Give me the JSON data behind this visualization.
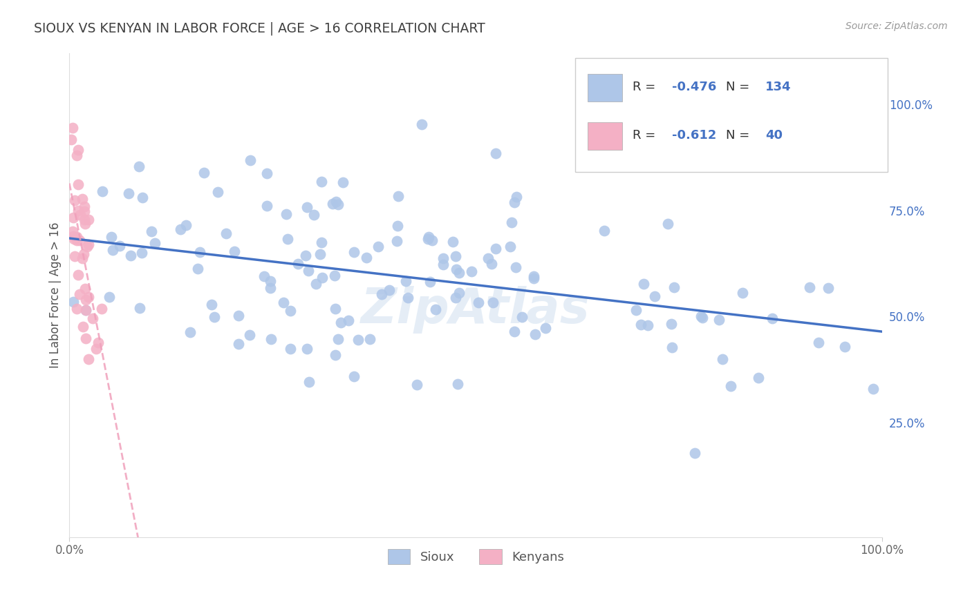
{
  "title": "SIOUX VS KENYAN IN LABOR FORCE | AGE > 16 CORRELATION CHART",
  "source_text": "Source: ZipAtlas.com",
  "ylabel": "In Labor Force | Age > 16",
  "xlim": [
    0.0,
    1.0
  ],
  "ylim": [
    -0.02,
    1.12
  ],
  "yticks": [
    0.25,
    0.5,
    0.75,
    1.0
  ],
  "ytick_labels": [
    "25.0%",
    "50.0%",
    "75.0%",
    "100.0%"
  ],
  "xticks": [
    0.0,
    1.0
  ],
  "xtick_labels": [
    "0.0%",
    "100.0%"
  ],
  "sioux_color": "#aec6e8",
  "kenyan_color": "#f4b0c5",
  "sioux_line_color": "#4472c4",
  "kenyan_line_color": "#f0a0bb",
  "sioux_R": -0.476,
  "sioux_N": 134,
  "kenyan_R": -0.612,
  "kenyan_N": 40,
  "watermark": "ZipAtlas",
  "background_color": "#ffffff",
  "grid_color": "#e5e5e5",
  "title_color": "#404040",
  "r_n_color": "#4472c4",
  "legend_text_color": "#333333"
}
